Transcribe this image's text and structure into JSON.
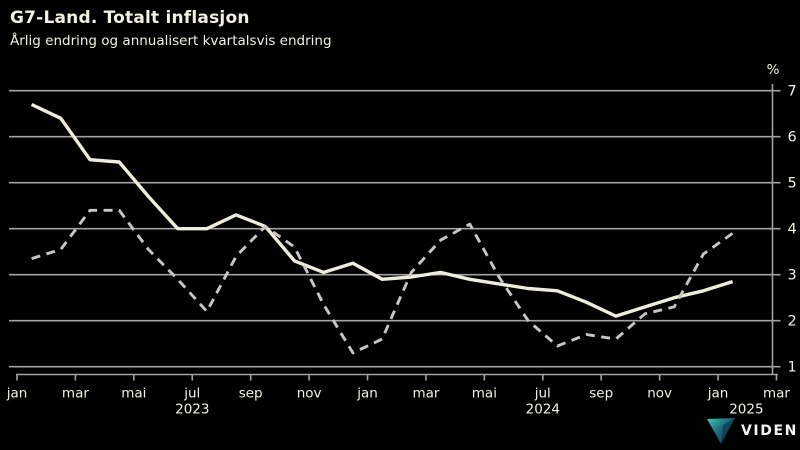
{
  "title": "G7-Land. Totalt inflasjon",
  "subtitle": "Årlig endring og annualisert kvartalsvis endring",
  "y_axis": {
    "unit": "%",
    "ticks": [
      7,
      6,
      5,
      4,
      3,
      2,
      1
    ]
  },
  "x_axis": {
    "tick_labels": [
      "jan",
      "mar",
      "mai",
      "jul",
      "sep",
      "nov",
      "jan",
      "mar",
      "mai",
      "jul",
      "sep",
      "nov",
      "jan",
      "mar"
    ],
    "year_labels": [
      "2023",
      "2024",
      "2025"
    ]
  },
  "chart_data": {
    "type": "line",
    "title": "G7-Land. Totalt inflasjon",
    "subtitle": "Årlig endring og annualisert kvartalsvis endring",
    "x": [
      "2023-01",
      "2023-02",
      "2023-03",
      "2023-04",
      "2023-05",
      "2023-06",
      "2023-07",
      "2023-08",
      "2023-09",
      "2023-10",
      "2023-11",
      "2023-12",
      "2024-01",
      "2024-02",
      "2024-03",
      "2024-04",
      "2024-05",
      "2024-06",
      "2024-07",
      "2024-08",
      "2024-09",
      "2024-10",
      "2024-11",
      "2024-12",
      "2025-01"
    ],
    "series": [
      {
        "name": "Årlig endring",
        "style": "solid",
        "values": [
          6.7,
          6.4,
          5.5,
          5.45,
          4.7,
          4.0,
          4.0,
          4.3,
          4.05,
          3.3,
          3.05,
          3.25,
          2.9,
          2.95,
          3.05,
          2.9,
          2.8,
          2.7,
          2.65,
          2.4,
          2.1,
          2.3,
          2.5,
          2.65,
          2.85
        ]
      },
      {
        "name": "Annualisert kvartalsvis endring",
        "style": "dashed",
        "values": [
          3.35,
          3.55,
          4.4,
          4.4,
          3.55,
          2.9,
          2.2,
          3.4,
          4.05,
          3.6,
          2.35,
          1.3,
          1.6,
          3.05,
          3.75,
          4.1,
          2.95,
          2.0,
          1.45,
          1.7,
          1.6,
          2.15,
          2.3,
          3.45,
          3.9
        ]
      }
    ],
    "ylabel": "%",
    "xlabel": "",
    "ylim": [
      0.8,
      7.3
    ],
    "x_range": [
      "2023-01",
      "2025-03"
    ],
    "grid": true,
    "legend_position": "none"
  },
  "logo": {
    "text": "VIDEN"
  },
  "colors": {
    "background": "#000000",
    "text": "#f2efe3",
    "solid_line": "#f0ecdc",
    "dashed_line": "#c6c6c4",
    "grid": "#a2a2a0",
    "logo_teal": "#3ecdb4",
    "logo_navy": "#123150"
  }
}
